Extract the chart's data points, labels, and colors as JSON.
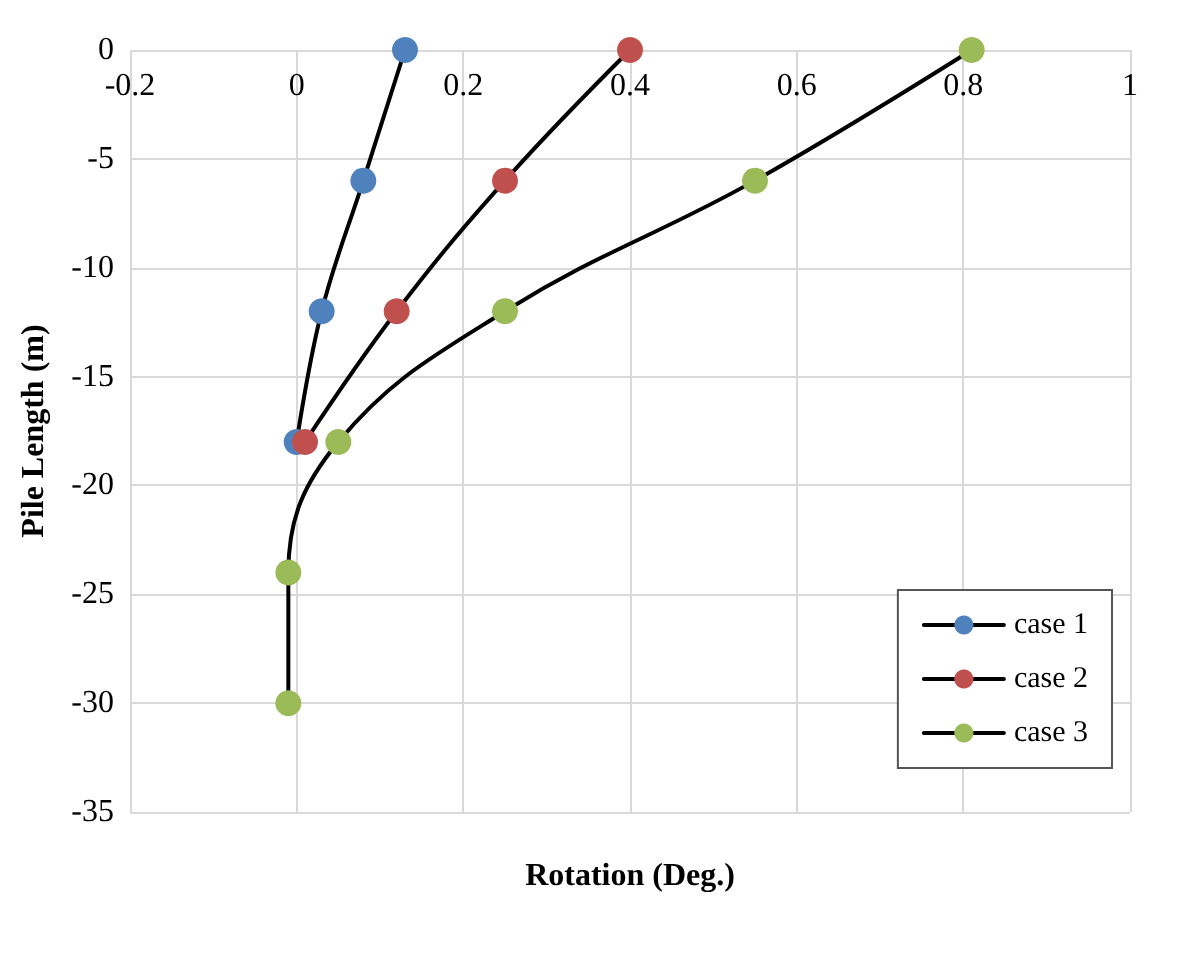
{
  "chart_data": {
    "type": "line",
    "xlabel": "Rotation (Deg.)",
    "ylabel": "Pile Length (m)",
    "series": [
      {
        "name": "case 1",
        "color": "#4f81bd",
        "x": [
          0.13,
          0.08,
          0.03,
          0
        ],
        "values": [
          0,
          -6,
          -12,
          -18
        ]
      },
      {
        "name": "case 2",
        "color": "#c0504d",
        "x": [
          0.4,
          0.25,
          0.12,
          0.01
        ],
        "values": [
          0,
          -6,
          -12,
          -18
        ]
      },
      {
        "name": "case 3",
        "color": "#9bbb59",
        "x": [
          0.81,
          0.55,
          0.25,
          0.05,
          -0.01,
          -0.01
        ],
        "values": [
          0,
          -6,
          -12,
          -18,
          -24,
          -30
        ]
      }
    ],
    "xlim": [
      -0.2,
      1
    ],
    "xticks": [
      -0.2,
      0,
      0.2,
      0.4,
      0.6,
      0.8,
      1
    ],
    "ylim": [
      -35,
      0
    ],
    "yticks": [
      -35,
      -30,
      -25,
      -20,
      -15,
      -10,
      -5,
      0
    ],
    "grid": true,
    "legend": "bottom right",
    "marker": "circle",
    "line_style": "solid"
  }
}
